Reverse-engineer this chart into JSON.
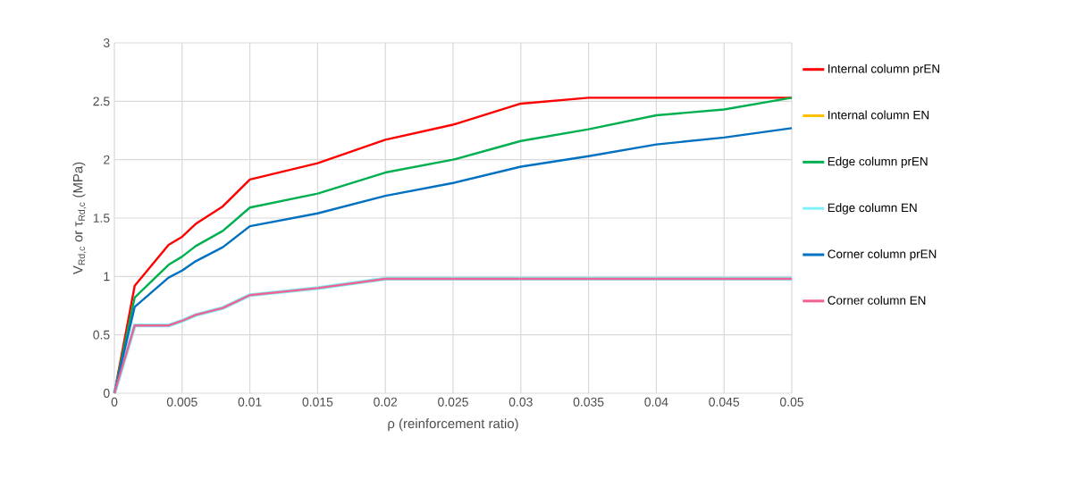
{
  "chart_data": {
    "type": "line",
    "xlabel": "ρ (reinforcement ratio)",
    "ylabel": "V$_{Rd,c}$ or τ$_{Rd,c}$ (MPa)",
    "x": [
      0,
      0.0015,
      0.004,
      0.005,
      0.006,
      0.008,
      0.01,
      0.015,
      0.02,
      0.025,
      0.03,
      0.035,
      0.04,
      0.045,
      0.05
    ],
    "series": [
      {
        "name": "Internal column prEN",
        "color": "#ff0000",
        "values": [
          0,
          0.92,
          1.27,
          1.34,
          1.45,
          1.6,
          1.83,
          1.97,
          2.17,
          2.3,
          2.48,
          2.53,
          2.53,
          2.53,
          2.53
        ]
      },
      {
        "name": "Internal column EN",
        "color": "#ffc000",
        "values": [
          null,
          null,
          null,
          null,
          null,
          null,
          null,
          null,
          null,
          null,
          null,
          null,
          null,
          null,
          null
        ]
      },
      {
        "name": "Edge column prEN",
        "color": "#00b050",
        "values": [
          0,
          0.82,
          1.1,
          1.17,
          1.26,
          1.39,
          1.59,
          1.71,
          1.89,
          2.0,
          2.16,
          2.26,
          2.38,
          2.43,
          2.53
        ]
      },
      {
        "name": "Edge column EN",
        "color": "#7ff0f8",
        "values": [
          0,
          0.58,
          0.58,
          0.62,
          0.67,
          0.73,
          0.84,
          0.9,
          0.98,
          0.98,
          0.98,
          0.98,
          0.98,
          0.98,
          0.98
        ]
      },
      {
        "name": "Corner column prEN",
        "color": "#0070c0",
        "values": [
          0,
          0.74,
          0.99,
          1.05,
          1.13,
          1.25,
          1.43,
          1.54,
          1.69,
          1.8,
          1.94,
          2.03,
          2.13,
          2.19,
          2.27
        ]
      },
      {
        "name": "Corner column EN",
        "color": "#f06292",
        "values": [
          0,
          0.58,
          0.58,
          0.62,
          0.67,
          0.73,
          0.84,
          0.9,
          0.98,
          0.98,
          0.98,
          0.98,
          0.98,
          0.98,
          0.98
        ]
      }
    ],
    "xlim": [
      0,
      0.05
    ],
    "ylim": [
      0,
      3
    ],
    "xticks": [
      0,
      0.005,
      0.01,
      0.015,
      0.02,
      0.025,
      0.03,
      0.035,
      0.04,
      0.045,
      0.05
    ],
    "yticks": [
      0,
      0.5,
      1,
      1.5,
      2,
      2.5,
      3
    ],
    "grid": true,
    "legend": "right",
    "marker": "none",
    "line_style": "solid"
  }
}
